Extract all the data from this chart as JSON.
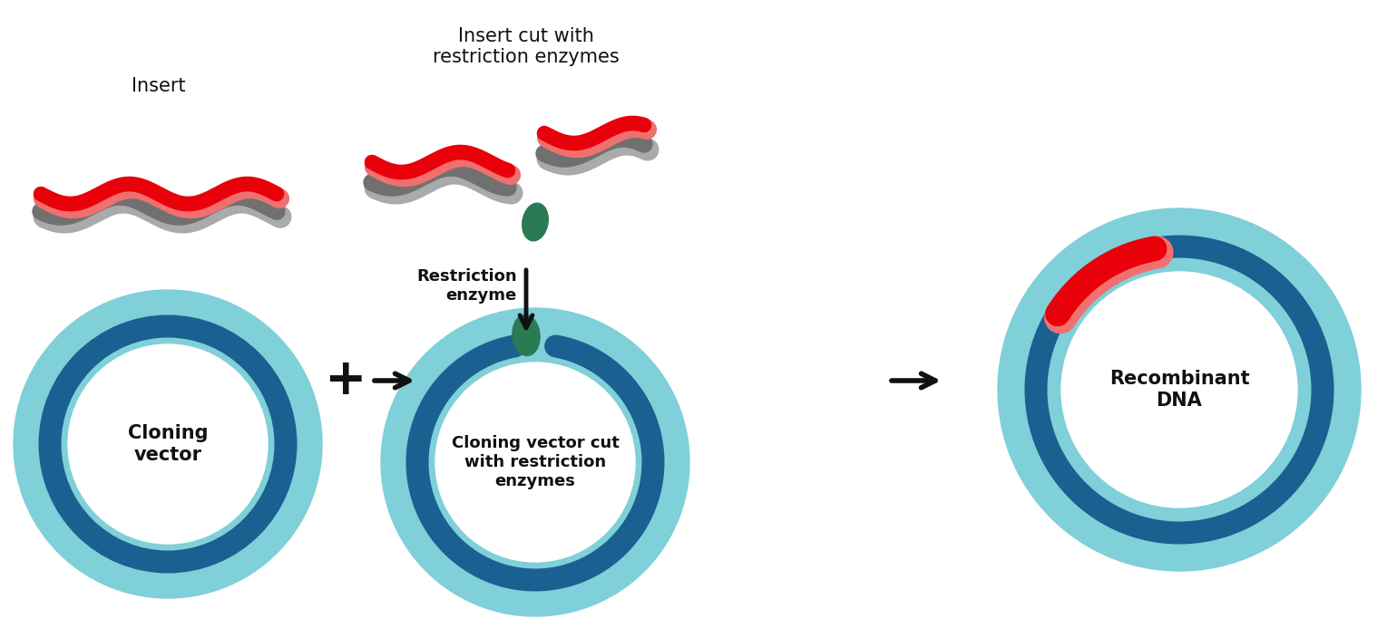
{
  "bg_color": "#ffffff",
  "colors": {
    "red": "#e8000a",
    "red_light": "#f07070",
    "gray_dark": "#707070",
    "gray_light": "#aaaaaa",
    "teal_outer": "#7fd0d8",
    "blue_ring": "#1a6090",
    "green_enzyme": "#2a7a55",
    "black": "#111111"
  },
  "labels": {
    "insert": "Insert",
    "insert_cut": "Insert cut with\nrestriction enzymes",
    "cloning_vector": "Cloning\nvector",
    "cloning_vector_cut": "Cloning vector cut\nwith restriction\nenzymes",
    "restriction_enzyme": "Restriction\nenzyme",
    "recombinant_dna": "Recombinant\nDNA"
  }
}
